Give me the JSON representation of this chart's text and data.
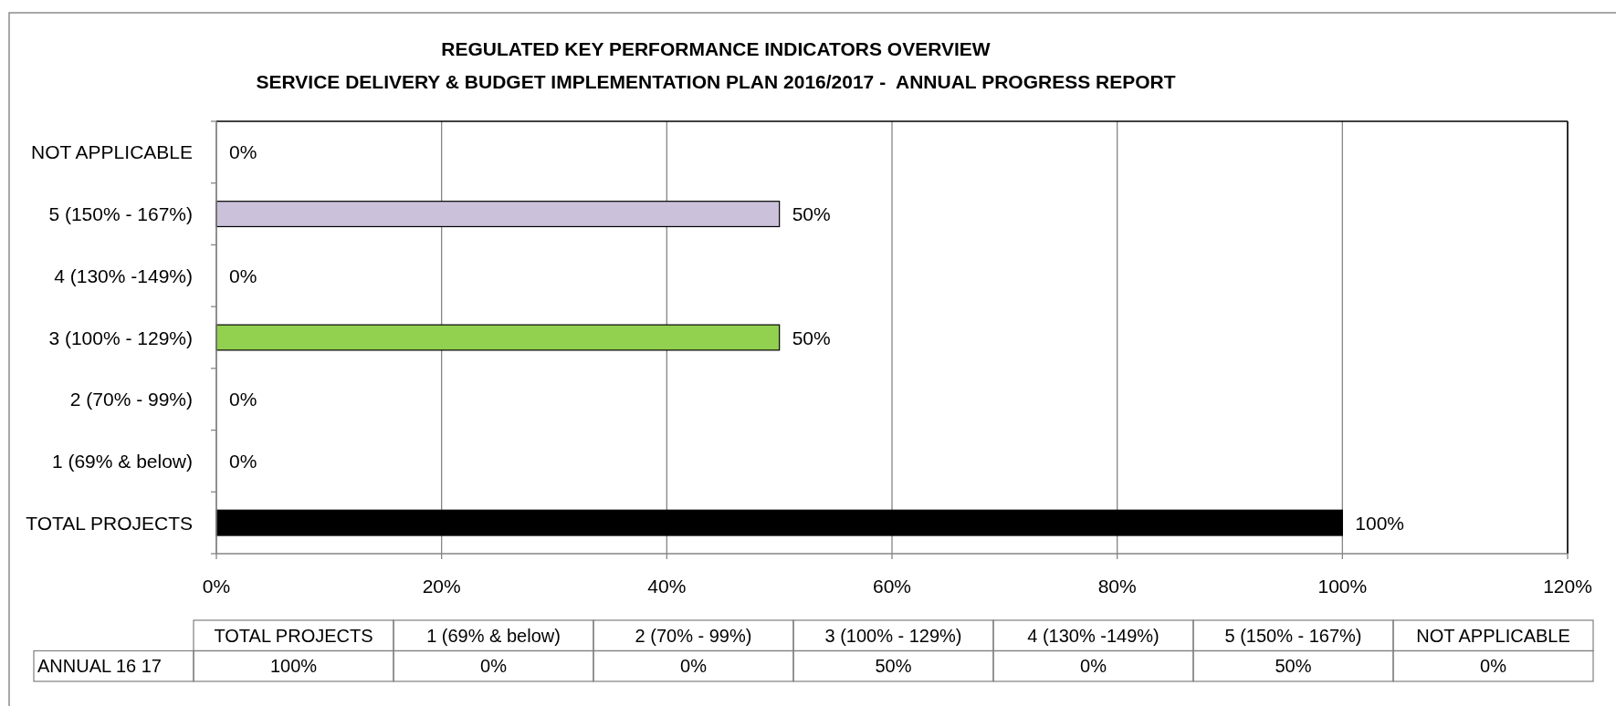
{
  "chart_data": {
    "type": "bar",
    "orientation": "horizontal",
    "title": "REGULATED KEY PERFORMANCE INDICATORS OVERVIEW",
    "subtitle": "SERVICE DELIVERY & BUDGET IMPLEMENTATION PLAN 2016/2017 -  ANNUAL PROGRESS REPORT",
    "categories": [
      "NOT APPLICABLE",
      "5 (150% - 167%)",
      "4 (130% -149%)",
      "3 (100% - 129%)",
      "2 (70% - 99%)",
      "1 (69% & below)",
      "TOTAL PROJECTS"
    ],
    "series": [
      {
        "name": "ANNUAL 16 17",
        "values": [
          0,
          50,
          0,
          50,
          0,
          0,
          100
        ],
        "colors": [
          null,
          "#ccc1da",
          null,
          "#92d050",
          null,
          null,
          "#000000"
        ],
        "value_labels": [
          "0%",
          "50%",
          "0%",
          "50%",
          "0%",
          "0%",
          "100%"
        ]
      }
    ],
    "xlim": [
      0,
      120
    ],
    "xticks": [
      {
        "value": 0,
        "label": "0%"
      },
      {
        "value": 20,
        "label": "20%"
      },
      {
        "value": 40,
        "label": "40%"
      },
      {
        "value": 60,
        "label": "60%"
      },
      {
        "value": 80,
        "label": "80%"
      },
      {
        "value": 100,
        "label": "100%"
      },
      {
        "value": 120,
        "label": "120%"
      }
    ],
    "grid": "x"
  }
}
